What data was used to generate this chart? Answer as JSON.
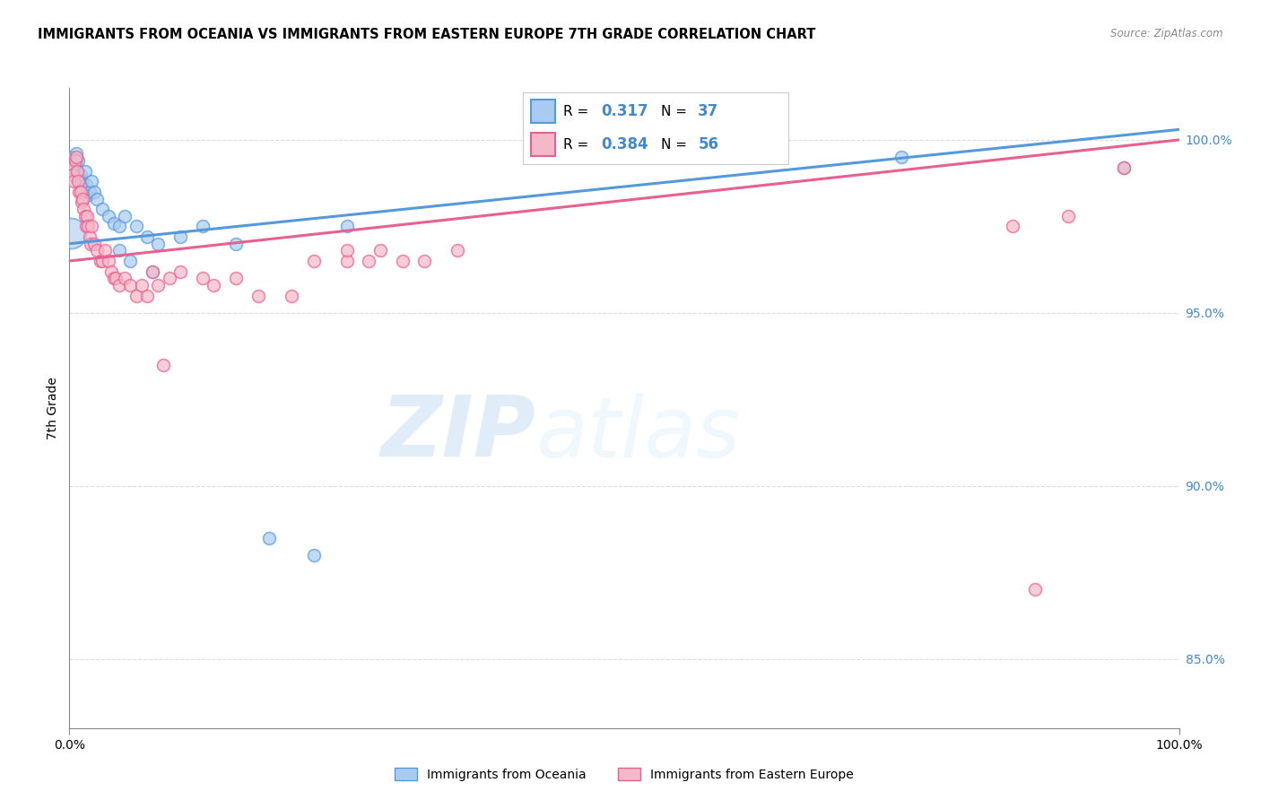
{
  "title": "IMMIGRANTS FROM OCEANIA VS IMMIGRANTS FROM EASTERN EUROPE 7TH GRADE CORRELATION CHART",
  "source": "Source: ZipAtlas.com",
  "ylabel": "7th Grade",
  "ylabel_right_ticks": [
    85.0,
    90.0,
    95.0,
    100.0
  ],
  "xmin": 0.0,
  "xmax": 100.0,
  "ymin": 83.0,
  "ymax": 101.5,
  "series1_label": "Immigrants from Oceania",
  "series1_color": "#aacbf0",
  "series1_R": 0.317,
  "series1_N": 37,
  "series1_line_color": "#5599dd",
  "series2_label": "Immigrants from Eastern Europe",
  "series2_color": "#f5b8c8",
  "series2_R": 0.384,
  "series2_N": 56,
  "series2_line_color": "#e86090",
  "watermark_zip": "ZIP",
  "watermark_atlas": "atlas",
  "background_color": "#ffffff",
  "grid_color": "#dddddd",
  "oceania_x": [
    0.2,
    0.3,
    0.4,
    0.5,
    0.6,
    0.7,
    0.8,
    0.9,
    1.0,
    1.1,
    1.2,
    1.4,
    1.5,
    1.6,
    1.8,
    2.0,
    2.2,
    2.5,
    3.0,
    3.5,
    4.0,
    4.5,
    5.0,
    6.0,
    7.0,
    8.0,
    10.0,
    12.0,
    15.0,
    18.0,
    22.0,
    25.0,
    4.5,
    5.5,
    7.5,
    75.0,
    95.0
  ],
  "oceania_y": [
    99.5,
    99.2,
    99.0,
    99.3,
    99.6,
    99.1,
    99.4,
    98.9,
    99.0,
    98.8,
    98.5,
    99.1,
    98.7,
    98.4,
    98.5,
    98.8,
    98.5,
    98.3,
    98.0,
    97.8,
    97.6,
    97.5,
    97.8,
    97.5,
    97.2,
    97.0,
    97.2,
    97.5,
    97.0,
    88.5,
    88.0,
    97.5,
    96.8,
    96.5,
    96.2,
    99.5,
    99.2
  ],
  "eastern_x": [
    0.2,
    0.3,
    0.4,
    0.5,
    0.6,
    0.7,
    0.8,
    0.9,
    1.0,
    1.1,
    1.2,
    1.3,
    1.4,
    1.5,
    1.6,
    1.7,
    1.8,
    1.9,
    2.0,
    2.2,
    2.5,
    2.8,
    3.0,
    3.2,
    3.5,
    3.8,
    4.0,
    4.2,
    4.5,
    5.0,
    5.5,
    6.0,
    7.0,
    8.0,
    9.0,
    10.0,
    12.0,
    13.0,
    15.0,
    17.0,
    20.0,
    22.0,
    25.0,
    27.0,
    30.0,
    32.0,
    35.0,
    25.0,
    28.0,
    95.0,
    85.0,
    90.0,
    6.5,
    7.5,
    8.5,
    87.0
  ],
  "eastern_y": [
    99.2,
    99.0,
    98.8,
    99.4,
    99.5,
    99.1,
    98.8,
    98.5,
    98.5,
    98.2,
    98.3,
    98.0,
    97.8,
    97.5,
    97.8,
    97.5,
    97.2,
    97.0,
    97.5,
    97.0,
    96.8,
    96.5,
    96.5,
    96.8,
    96.5,
    96.2,
    96.0,
    96.0,
    95.8,
    96.0,
    95.8,
    95.5,
    95.5,
    95.8,
    96.0,
    96.2,
    96.0,
    95.8,
    96.0,
    95.5,
    95.5,
    96.5,
    96.5,
    96.5,
    96.5,
    96.5,
    96.8,
    96.8,
    96.8,
    99.2,
    97.5,
    97.8,
    95.8,
    96.2,
    93.5,
    87.0
  ]
}
